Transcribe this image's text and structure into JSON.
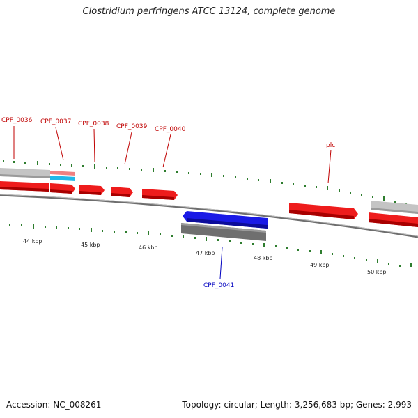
{
  "title": "Clostridium perfringens ATCC 13124, complete genome",
  "accession": "Accession: NC_008261",
  "stats": "Topology: circular; Length: 3,256,683 bp; Genes: 2,993",
  "colors": {
    "forward_gene": "#ee1c1c",
    "reverse_gene": "#1a1ae6",
    "gray_feature": "#b8b8b8",
    "scale_tick": "#2e7d2e",
    "label_forward": "#c00000",
    "label_reverse": "#0000c0"
  },
  "scale_labels": [
    "44 kbp",
    "45 kbp",
    "46 kbp",
    "47 kbp",
    "48 kbp",
    "49 kbp",
    "50 kbp"
  ],
  "gene_labels": [
    {
      "text": "CPF_0036",
      "strand": "forward"
    },
    {
      "text": "CPF_0037",
      "strand": "forward"
    },
    {
      "text": "CPF_0038",
      "strand": "forward"
    },
    {
      "text": "CPF_0039",
      "strand": "forward"
    },
    {
      "text": "CPF_0040",
      "strand": "forward"
    },
    {
      "text": "plc",
      "strand": "forward"
    },
    {
      "text": "CPF_0041",
      "strand": "reverse"
    }
  ]
}
